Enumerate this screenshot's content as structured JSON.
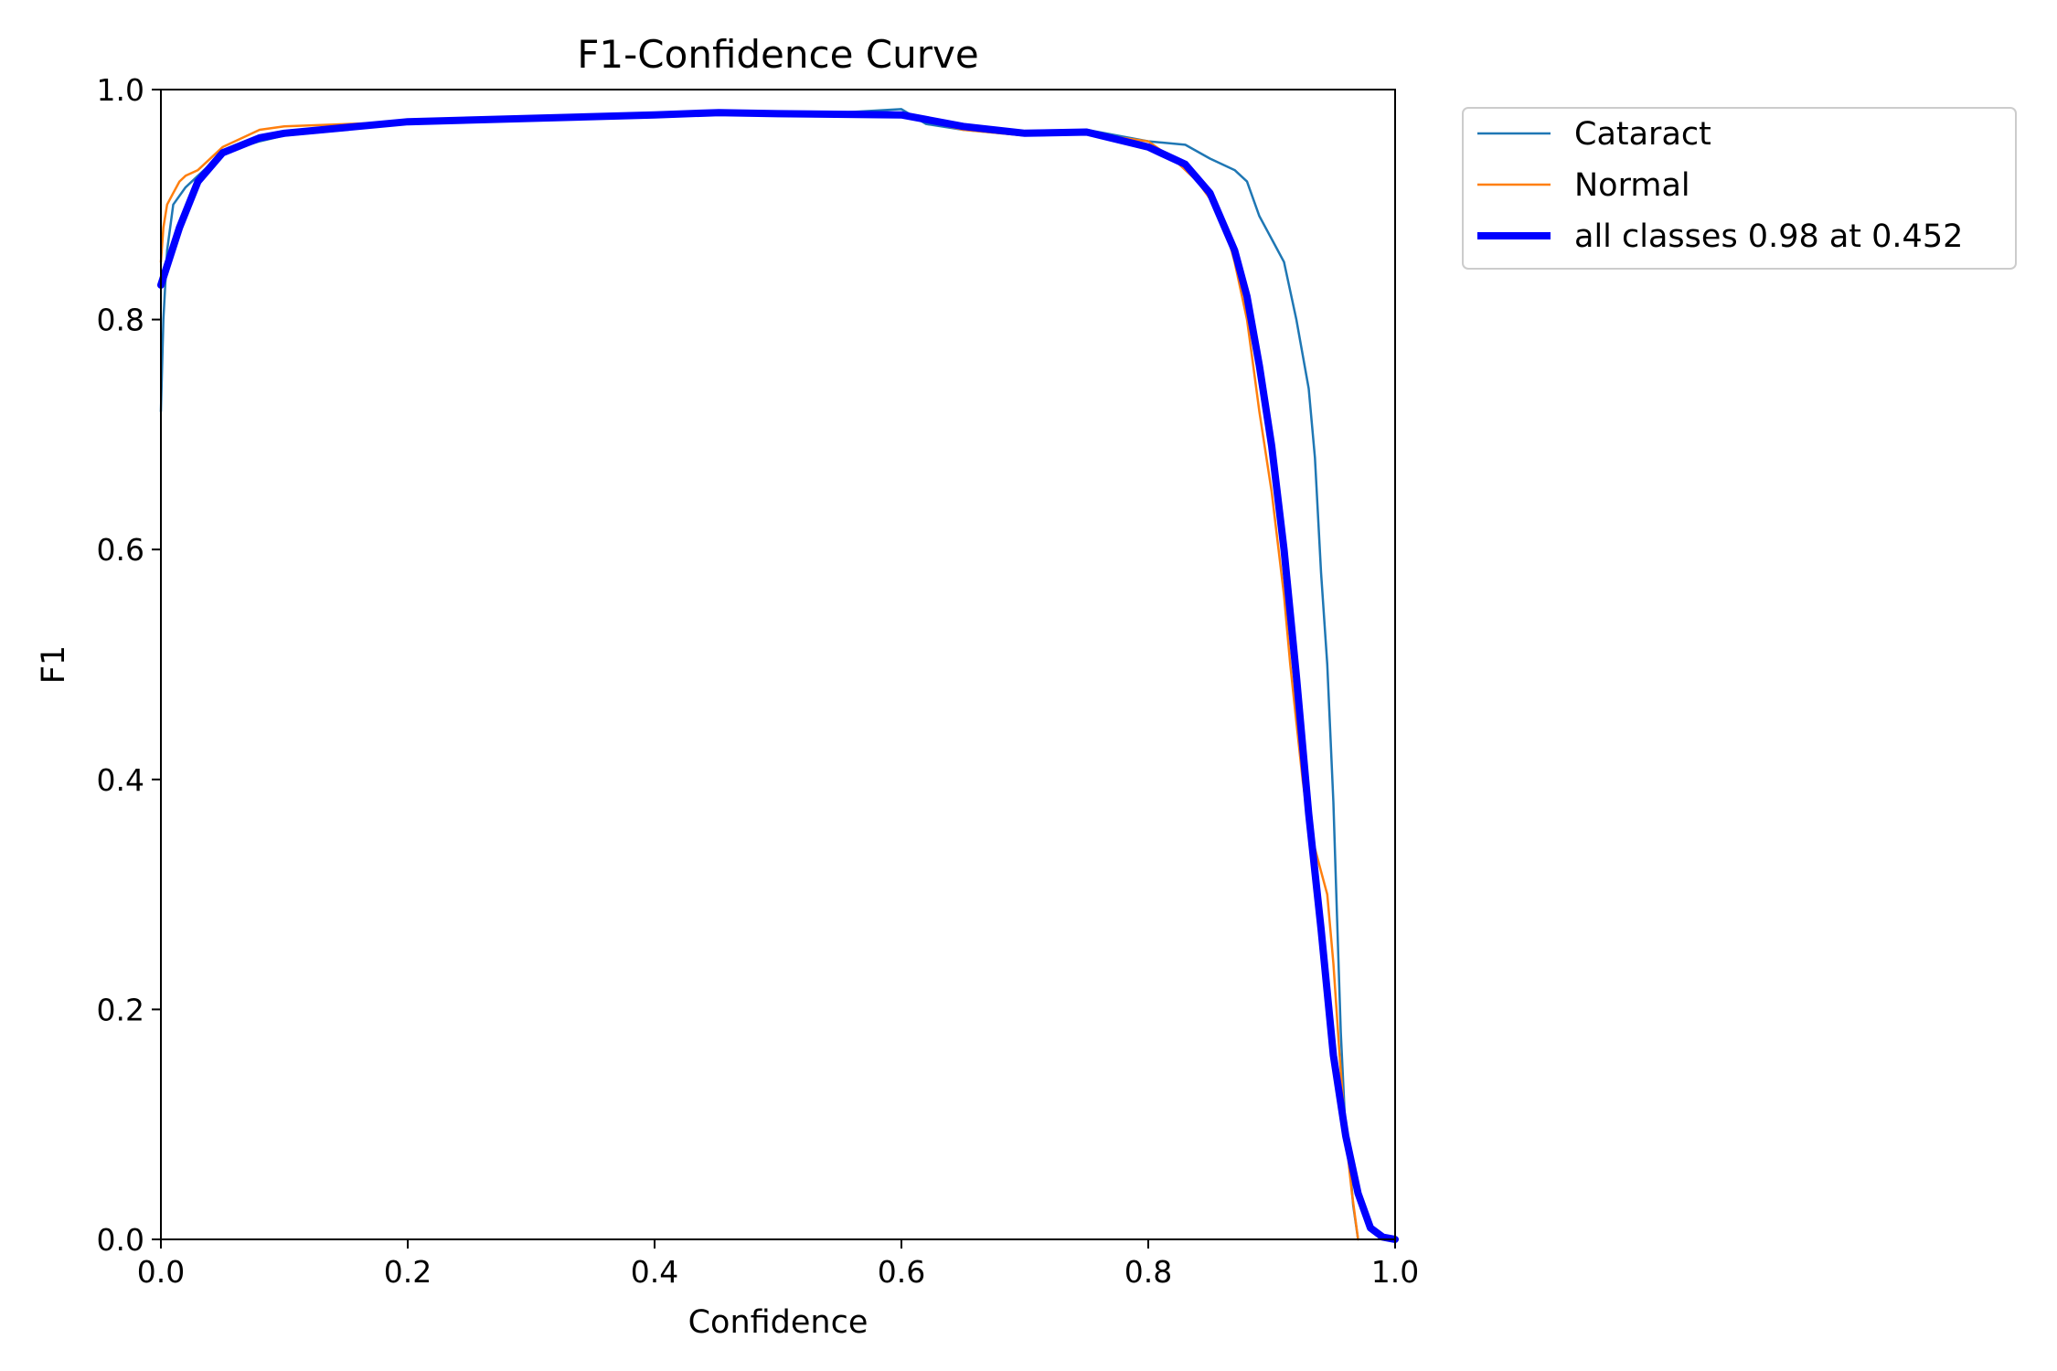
{
  "chart_data": {
    "type": "line",
    "title": "F1-Confidence Curve",
    "xlabel": "Confidence",
    "ylabel": "F1",
    "xlim": [
      0.0,
      1.0
    ],
    "ylim": [
      0.0,
      1.0
    ],
    "xticks": [
      "0.0",
      "0.2",
      "0.4",
      "0.6",
      "0.8",
      "1.0"
    ],
    "yticks": [
      "0.0",
      "0.2",
      "0.4",
      "0.6",
      "0.8",
      "1.0"
    ],
    "grid": false,
    "legend_position": "outside-top-right",
    "series": [
      {
        "name": "Cataract",
        "color": "#1f77b4",
        "width": "thin",
        "x": [
          0.0,
          0.002,
          0.005,
          0.01,
          0.02,
          0.03,
          0.05,
          0.08,
          0.1,
          0.15,
          0.2,
          0.3,
          0.4,
          0.45,
          0.5,
          0.55,
          0.6,
          0.62,
          0.65,
          0.7,
          0.75,
          0.8,
          0.83,
          0.85,
          0.87,
          0.88,
          0.89,
          0.9,
          0.91,
          0.92,
          0.93,
          0.935,
          0.94,
          0.945,
          0.95,
          0.953,
          0.956,
          0.96,
          0.963,
          0.966,
          0.97
        ],
        "y": [
          0.72,
          0.8,
          0.86,
          0.9,
          0.915,
          0.925,
          0.945,
          0.955,
          0.96,
          0.965,
          0.972,
          0.975,
          0.978,
          0.98,
          0.98,
          0.98,
          0.983,
          0.97,
          0.965,
          0.96,
          0.965,
          0.955,
          0.952,
          0.94,
          0.93,
          0.92,
          0.89,
          0.87,
          0.85,
          0.8,
          0.74,
          0.68,
          0.58,
          0.5,
          0.38,
          0.28,
          0.18,
          0.09,
          0.07,
          0.03,
          0.0
        ]
      },
      {
        "name": "Normal",
        "color": "#ff7f0e",
        "width": "thin",
        "x": [
          0.0,
          0.002,
          0.005,
          0.01,
          0.015,
          0.02,
          0.03,
          0.05,
          0.08,
          0.1,
          0.15,
          0.2,
          0.3,
          0.4,
          0.45,
          0.5,
          0.55,
          0.6,
          0.65,
          0.7,
          0.75,
          0.8,
          0.82,
          0.84,
          0.86,
          0.87,
          0.88,
          0.885,
          0.89,
          0.9,
          0.91,
          0.915,
          0.92,
          0.925,
          0.93,
          0.935,
          0.94,
          0.945,
          0.95,
          0.955,
          0.96,
          0.965,
          0.97
        ],
        "y": [
          0.85,
          0.88,
          0.9,
          0.91,
          0.92,
          0.925,
          0.93,
          0.95,
          0.965,
          0.968,
          0.97,
          0.972,
          0.975,
          0.978,
          0.98,
          0.98,
          0.98,
          0.978,
          0.965,
          0.96,
          0.962,
          0.955,
          0.94,
          0.92,
          0.89,
          0.85,
          0.8,
          0.76,
          0.72,
          0.65,
          0.56,
          0.5,
          0.45,
          0.4,
          0.36,
          0.34,
          0.32,
          0.3,
          0.24,
          0.16,
          0.09,
          0.04,
          0.0
        ]
      },
      {
        "name": "all classes 0.98 at 0.452",
        "color": "#0000ff",
        "width": "thick",
        "x": [
          0.0,
          0.015,
          0.03,
          0.05,
          0.08,
          0.1,
          0.15,
          0.2,
          0.3,
          0.4,
          0.452,
          0.5,
          0.6,
          0.65,
          0.7,
          0.75,
          0.8,
          0.83,
          0.85,
          0.87,
          0.88,
          0.89,
          0.9,
          0.91,
          0.92,
          0.93,
          0.94,
          0.95,
          0.96,
          0.97,
          0.98,
          0.99,
          1.0
        ],
        "y": [
          0.83,
          0.88,
          0.92,
          0.945,
          0.958,
          0.962,
          0.967,
          0.972,
          0.975,
          0.978,
          0.98,
          0.979,
          0.978,
          0.968,
          0.962,
          0.963,
          0.95,
          0.935,
          0.91,
          0.86,
          0.82,
          0.76,
          0.69,
          0.6,
          0.49,
          0.37,
          0.27,
          0.16,
          0.09,
          0.04,
          0.01,
          0.002,
          0.0
        ]
      }
    ]
  }
}
